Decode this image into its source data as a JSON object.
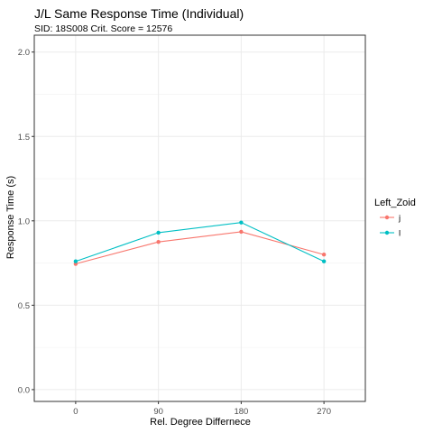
{
  "chart_data": {
    "type": "line",
    "title": "J/L Same Response Time (Individual)",
    "subtitle": "SID:  18S008 Crit. Score =  12576",
    "xlabel": "Rel. Degree Differnece",
    "ylabel": "Response Time (s)",
    "x": [
      0,
      90,
      180,
      270
    ],
    "x_tick_labels": [
      "0",
      "90",
      "180",
      "270"
    ],
    "xlim": [
      -45,
      315
    ],
    "ylim": [
      -0.07,
      2.1
    ],
    "y_ticks": [
      0.0,
      0.5,
      1.0,
      1.5,
      2.0
    ],
    "y_tick_labels": [
      "0.0",
      "0.5",
      "1.0",
      "1.5",
      "2.0"
    ],
    "grid": true,
    "legend_title": "Left_Zoid",
    "legend_position": "right",
    "series": [
      {
        "name": "j",
        "color": "#F8766D",
        "values": [
          0.745,
          0.875,
          0.935,
          0.8
        ]
      },
      {
        "name": "l",
        "color": "#00BFC4",
        "values": [
          0.76,
          0.93,
          0.99,
          0.76
        ]
      }
    ]
  }
}
